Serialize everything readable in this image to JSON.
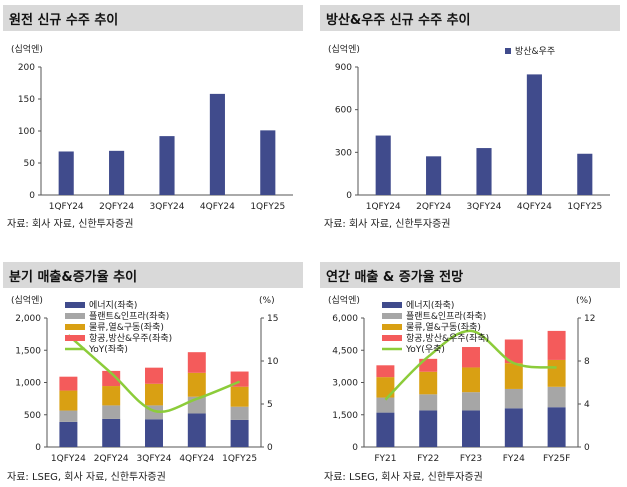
{
  "panels": [
    {
      "title": "원전 신규 수주 추이",
      "source": "자료: 회사 자료, 신한투자증권",
      "chart_data": {
        "type": "bar",
        "unit_left": "(십억엔)",
        "categories": [
          "1QFY24",
          "2QFY24",
          "3QFY24",
          "4QFY24",
          "1QFY25"
        ],
        "series": [
          {
            "values": [
              68,
              69,
              92,
              158,
              101
            ],
            "color": "#404b8c"
          }
        ],
        "ylim": [
          0,
          200
        ],
        "yticks": [
          "0",
          "50",
          "100",
          "150",
          "200"
        ]
      }
    },
    {
      "title": "방산&우주 신규 수주 추이",
      "source": "자료: 회사 자료, 신한투자증권",
      "chart_data": {
        "type": "bar",
        "unit_left": "(십억엔)",
        "categories": [
          "1QFY24",
          "2QFY24",
          "3QFY24",
          "4QFY24",
          "1QFY25"
        ],
        "series": [
          {
            "name": "방산&우주",
            "values": [
              418,
              272,
              330,
              848,
              290
            ],
            "color": "#404b8c"
          }
        ],
        "ylim": [
          0,
          900
        ],
        "yticks": [
          "0",
          "300",
          "600",
          "900"
        ],
        "legend": "top-right"
      }
    },
    {
      "title": "분기 매출&증가율 추이",
      "source": "자료: LSEG, 회사 자료, 신한투자증권",
      "chart_data": {
        "type": "stacked-bar-line",
        "unit_left": "(십억엔)",
        "unit_right": "(%)",
        "categories": [
          "1QFY24",
          "2QFY24",
          "3QFY24",
          "4QFY24",
          "1QFY25"
        ],
        "series": [
          {
            "name": "에너지(좌축)",
            "values": [
              390,
              435,
              430,
              520,
              420
            ],
            "color": "#404b8c"
          },
          {
            "name": "플랜트&인프라(좌축)",
            "values": [
              175,
              210,
              215,
              260,
              205
            ],
            "color": "#a6a6a6"
          },
          {
            "name": "물류,열&구동(좌축)",
            "values": [
              310,
              300,
              335,
              370,
              310
            ],
            "color": "#d9a013"
          },
          {
            "name": "항공,방산&우주(좌축)",
            "values": [
              215,
              235,
              250,
              320,
              235
            ],
            "color": "#f45b5b"
          }
        ],
        "line": {
          "name": "YoY(좌축)",
          "values": [
            13.0,
            8.6,
            4.2,
            5.6,
            7.6
          ],
          "color": "#8ccc3a"
        },
        "ylim": [
          0,
          2000
        ],
        "yticks": [
          "0",
          "500",
          "1,000",
          "1,500",
          "2,000"
        ],
        "y2lim": [
          0,
          15
        ],
        "y2ticks": [
          "0",
          "5",
          "10",
          "15"
        ]
      }
    },
    {
      "title": "연간 매출 & 증가율 전망",
      "source": "자료: LSEG, 회사 자료, 신한투자증권",
      "chart_data": {
        "type": "stacked-bar-line",
        "unit_left": "(십억엔)",
        "unit_right": "(%)",
        "categories": [
          "FY21",
          "FY22",
          "FY23",
          "FY24",
          "FY25F"
        ],
        "series": [
          {
            "name": "에너지(좌축)",
            "values": [
              1600,
              1700,
              1700,
              1800,
              1850
            ],
            "color": "#404b8c"
          },
          {
            "name": "플랜트&인프라(좌축)",
            "values": [
              700,
              750,
              850,
              900,
              950
            ],
            "color": "#a6a6a6"
          },
          {
            "name": "물류,열&구동(좌축)",
            "values": [
              950,
              1050,
              1150,
              1200,
              1250
            ],
            "color": "#d9a013"
          },
          {
            "name": "항공,방산&우주(좌축)",
            "values": [
              550,
              600,
              950,
              1100,
              1350
            ],
            "color": "#f45b5b"
          }
        ],
        "line": {
          "name": "YoY(우축)",
          "values": [
            4.4,
            8.4,
            10.8,
            7.8,
            7.4
          ],
          "color": "#8ccc3a"
        },
        "ylim": [
          0,
          6000
        ],
        "yticks": [
          "0",
          "1,500",
          "3,000",
          "4,500",
          "6,000"
        ],
        "y2lim": [
          0,
          12
        ],
        "y2ticks": [
          "0",
          "4",
          "8",
          "12"
        ]
      }
    }
  ]
}
